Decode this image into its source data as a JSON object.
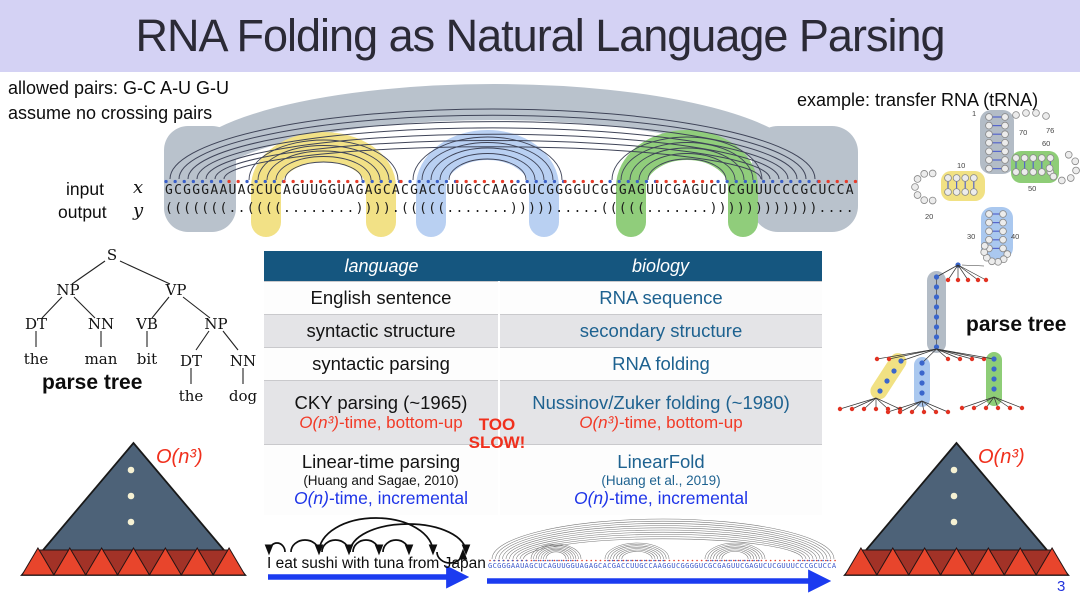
{
  "title": "RNA Folding as Natural Language Parsing",
  "notes": {
    "allowed_pairs": "allowed pairs:  G-C A-U G-U",
    "no_crossing": "assume no crossing pairs",
    "example": "example: transfer RNA (tRNA)"
  },
  "io": {
    "input_label": "input",
    "input_var": "x",
    "output_label": "output",
    "output_var": "y",
    "sequence": "GCGGGAAUAGCUCAGUUGGUAGAGCACGACCUUGCCAAGGUCGGGGUCGCGAGUUCGAGUCUCGUUUCCCGCUCCA",
    "structure": "(((((((..((((........)))).(((((.......))))).....(((((.......))))))))))))...."
  },
  "left_tree": {
    "caption": "parse tree",
    "nodes": [
      "S",
      "NP",
      "VP",
      "DT",
      "NN",
      "VB",
      "NP",
      "the",
      "man",
      "bit",
      "DT",
      "NN",
      "the",
      "dog"
    ]
  },
  "table": {
    "headers": [
      "language",
      "biology"
    ],
    "rows": [
      {
        "shade": false,
        "cells": [
          [
            {
              "t": "English sentence",
              "c": "black"
            }
          ],
          [
            {
              "t": "RNA sequence",
              "c": "steel"
            }
          ]
        ]
      },
      {
        "shade": true,
        "cells": [
          [
            {
              "t": "syntactic structure",
              "c": "black"
            }
          ],
          [
            {
              "t": "secondary structure",
              "c": "steel"
            }
          ]
        ]
      },
      {
        "shade": false,
        "cells": [
          [
            {
              "t": "syntactic parsing",
              "c": "black"
            }
          ],
          [
            {
              "t": "RNA folding",
              "c": "steel"
            }
          ]
        ]
      },
      {
        "shade": true,
        "cells": [
          [
            {
              "t": "CKY parsing (~1965)",
              "c": "black"
            },
            {
              "t": "O(n³)-time, bottom-up",
              "c": "red"
            }
          ],
          [
            {
              "t": "Nussinov/Zuker folding (~1980)",
              "c": "steel"
            },
            {
              "t": "O(n³)-time, bottom-up",
              "c": "red"
            }
          ]
        ]
      },
      {
        "shade": false,
        "cells": [
          [
            {
              "t": "Linear-time parsing",
              "c": "black"
            },
            {
              "t": "(Huang and Sagae, 2010)",
              "c": "black",
              "small": true
            },
            {
              "t": "O(n)-time, incremental",
              "c": "blue"
            }
          ],
          [
            {
              "t": "LinearFold",
              "c": "steel"
            },
            {
              "t": "(Huang et al., 2019)",
              "c": "steel",
              "small": true
            },
            {
              "t": "O(n)-time, incremental",
              "c": "blue"
            }
          ]
        ]
      }
    ]
  },
  "too_slow": "TOO SLOW!",
  "right_tree_caption": "parse tree",
  "trna": {
    "position_labels": [
      "1",
      "70",
      "76",
      "60",
      "10",
      "50",
      "20",
      "30",
      "40"
    ]
  },
  "complexity": "O(n³)",
  "bottom": {
    "sentence": "I eat sushi with tuna from Japan",
    "sequence": "GCGGGAAUAGCUCAGUUGGUAGAGCACGACCUUGCCAAGGUCGGGGUCGCGAGUUCGAGUCUCGUUUCCCGCUCCA"
  },
  "page_number": "3",
  "colors": {
    "title_band": "#d4d2f4",
    "table_header_bg": "#15567f",
    "steel_blue_text": "#1e6290",
    "vivid_blue_text": "#1f35e8",
    "red_text": "#f23a27",
    "arc_gray": "#b9c2cc",
    "arc_yellow": "#f2e186",
    "arc_blue": "#b9d0f2",
    "arc_green": "#90cd7b",
    "pyramid_fill": "#4d6278",
    "pyramid_red": "#e8452c",
    "pyramid_dark_red": "#a23227",
    "arrow_blue": "#1b3bf0"
  }
}
